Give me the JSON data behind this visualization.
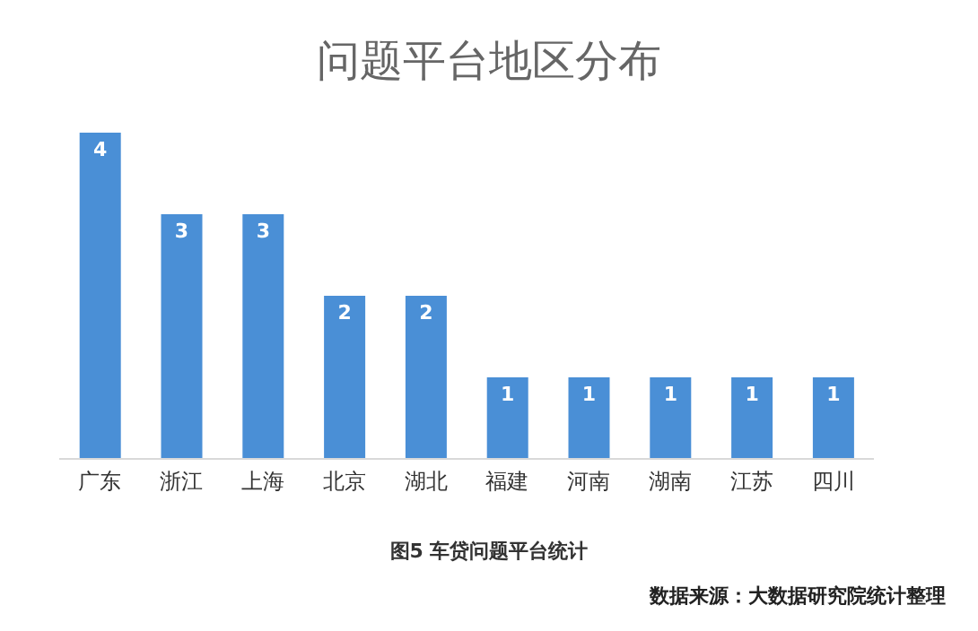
{
  "chart_data": {
    "type": "bar",
    "title": "问题平台地区分布",
    "categories": [
      "广东",
      "浙江",
      "上海",
      "北京",
      "湖北",
      "福建",
      "河南",
      "湖南",
      "江苏",
      "四川"
    ],
    "values": [
      4,
      3,
      3,
      2,
      2,
      1,
      1,
      1,
      1,
      1
    ],
    "color": "#4a8fd6",
    "data_labels": true,
    "grid": false,
    "legend": false,
    "annotations": [
      "图5 车贷问题平台统计",
      "数据来源：大数据研究院统计整理"
    ]
  }
}
